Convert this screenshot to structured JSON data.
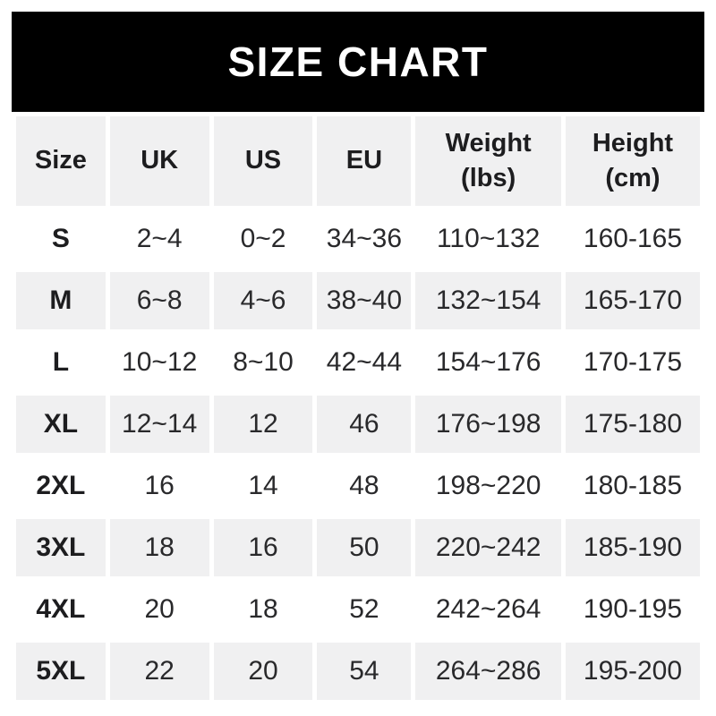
{
  "banner": {
    "title": "SIZE CHART",
    "bg_color": "#000000",
    "text_color": "#ffffff"
  },
  "table": {
    "alt_row_bg_color": "#f0f0f1",
    "columns": [
      {
        "id": "size",
        "label": "Size"
      },
      {
        "id": "uk",
        "label": "UK"
      },
      {
        "id": "us",
        "label": "US"
      },
      {
        "id": "eu",
        "label": "EU"
      },
      {
        "id": "weight",
        "label_line1": "Weight",
        "label_line2": "(lbs)"
      },
      {
        "id": "height",
        "label_line1": "Height",
        "label_line2": "(cm)"
      }
    ],
    "rows": [
      {
        "size": "S",
        "uk": "2~4",
        "us": "0~2",
        "eu": "34~36",
        "weight": "110~132",
        "height": "160-165"
      },
      {
        "size": "M",
        "uk": "6~8",
        "us": "4~6",
        "eu": "38~40",
        "weight": "132~154",
        "height": "165-170"
      },
      {
        "size": "L",
        "uk": "10~12",
        "us": "8~10",
        "eu": "42~44",
        "weight": "154~176",
        "height": "170-175"
      },
      {
        "size": "XL",
        "uk": "12~14",
        "us": "12",
        "eu": "46",
        "weight": "176~198",
        "height": "175-180"
      },
      {
        "size": "2XL",
        "uk": "16",
        "us": "14",
        "eu": "48",
        "weight": "198~220",
        "height": "180-185"
      },
      {
        "size": "3XL",
        "uk": "18",
        "us": "16",
        "eu": "50",
        "weight": "220~242",
        "height": "185-190"
      },
      {
        "size": "4XL",
        "uk": "20",
        "us": "18",
        "eu": "52",
        "weight": "242~264",
        "height": "190-195"
      },
      {
        "size": "5XL",
        "uk": "22",
        "us": "20",
        "eu": "54",
        "weight": "264~286",
        "height": "195-200"
      }
    ]
  },
  "chart_data": {
    "type": "table",
    "title": "SIZE CHART",
    "columns": [
      "Size",
      "UK",
      "US",
      "EU",
      "Weight (lbs)",
      "Height (cm)"
    ],
    "rows": [
      [
        "S",
        "2~4",
        "0~2",
        "34~36",
        "110~132",
        "160-165"
      ],
      [
        "M",
        "6~8",
        "4~6",
        "38~40",
        "132~154",
        "165-170"
      ],
      [
        "L",
        "10~12",
        "8~10",
        "42~44",
        "154~176",
        "170-175"
      ],
      [
        "XL",
        "12~14",
        "12",
        "46",
        "176~198",
        "175-180"
      ],
      [
        "2XL",
        "16",
        "14",
        "48",
        "198~220",
        "180-185"
      ],
      [
        "3XL",
        "18",
        "16",
        "50",
        "220~242",
        "185-190"
      ],
      [
        "4XL",
        "20",
        "18",
        "52",
        "242~264",
        "190-195"
      ],
      [
        "5XL",
        "22",
        "20",
        "54",
        "264~286",
        "195-200"
      ]
    ]
  }
}
